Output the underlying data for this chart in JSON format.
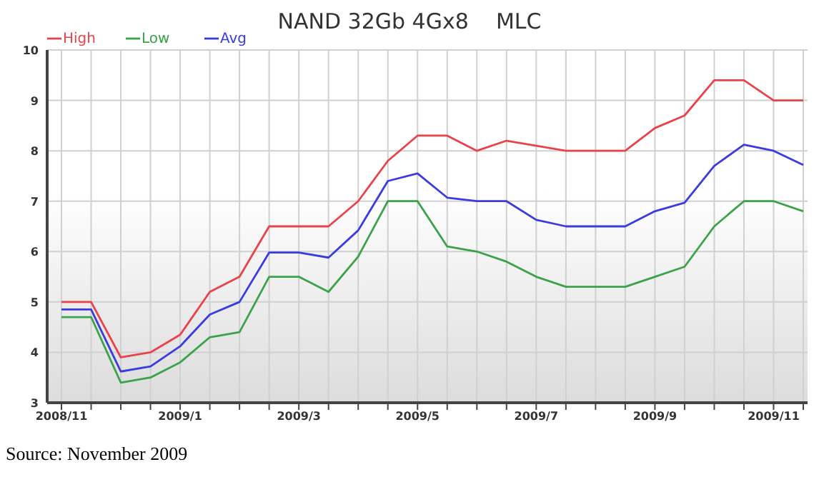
{
  "chart_data": {
    "type": "line",
    "title": "NAND 32Gb 4Gx8    MLC",
    "categories": [
      "2008/11",
      null,
      null,
      null,
      "2009/1",
      null,
      null,
      null,
      "2009/3",
      null,
      null,
      null,
      "2009/5",
      null,
      null,
      null,
      "2009/7",
      null,
      null,
      null,
      "2009/9",
      null,
      null,
      null,
      "2009/11",
      null
    ],
    "series": [
      {
        "name": "High",
        "color": "#e8434b",
        "values": [
          5.0,
          5.0,
          3.9,
          4.0,
          4.35,
          5.2,
          5.5,
          6.5,
          6.5,
          6.5,
          7.0,
          7.8,
          8.3,
          8.3,
          8.0,
          8.2,
          8.1,
          8.0,
          8.0,
          8.0,
          8.45,
          8.7,
          9.4,
          9.4,
          9.0,
          9.0
        ]
      },
      {
        "name": "Low",
        "color": "#3aa34a",
        "values": [
          4.7,
          4.7,
          3.4,
          3.5,
          3.8,
          4.3,
          4.4,
          5.5,
          5.5,
          5.2,
          5.9,
          7.0,
          7.0,
          6.1,
          6.0,
          5.8,
          5.5,
          5.3,
          5.3,
          5.3,
          5.5,
          5.7,
          6.5,
          7.0,
          7.0,
          6.8
        ]
      },
      {
        "name": "Avg",
        "color": "#3b3be0",
        "values": [
          4.85,
          4.85,
          3.62,
          3.72,
          4.12,
          4.75,
          5.0,
          5.98,
          5.98,
          5.88,
          6.42,
          7.4,
          7.55,
          7.07,
          7.0,
          7.0,
          6.63,
          6.5,
          6.5,
          6.5,
          6.8,
          6.97,
          7.7,
          8.12,
          8.0,
          7.72
        ]
      }
    ],
    "ylim": [
      3,
      10
    ],
    "yticks": [
      3,
      4,
      5,
      6,
      7,
      8,
      9,
      10
    ],
    "grid": true,
    "legend": "top left",
    "marker": "none",
    "line_style": "solid",
    "annotations": [
      "Source: November 2009"
    ]
  }
}
